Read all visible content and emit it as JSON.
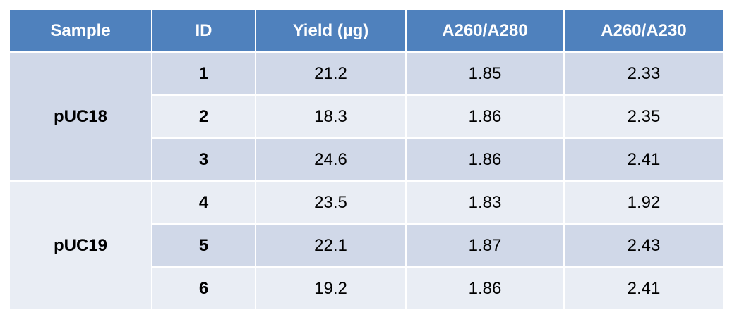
{
  "chart_data": {
    "type": "table",
    "columns": [
      "Sample",
      "ID",
      "Yield (µg)",
      "A260/A280",
      "A260/A230"
    ],
    "groups": [
      {
        "sample": "pUC18",
        "rows": [
          {
            "id": "1",
            "yield": "21.2",
            "a260_280": "1.85",
            "a260_230": "2.33"
          },
          {
            "id": "2",
            "yield": "18.3",
            "a260_280": "1.86",
            "a260_230": "2.35"
          },
          {
            "id": "3",
            "yield": "24.6",
            "a260_280": "1.86",
            "a260_230": "2.41"
          }
        ]
      },
      {
        "sample": "pUC19",
        "rows": [
          {
            "id": "4",
            "yield": "23.5",
            "a260_280": "1.83",
            "a260_230": "1.92"
          },
          {
            "id": "5",
            "yield": "22.1",
            "a260_280": "1.87",
            "a260_230": "2.43"
          },
          {
            "id": "6",
            "yield": "19.2",
            "a260_280": "1.86",
            "a260_230": "2.41"
          }
        ]
      }
    ]
  },
  "colors": {
    "header": "#4f81bd",
    "row_dark": "#d0d8e8",
    "row_light": "#e9edf4"
  }
}
